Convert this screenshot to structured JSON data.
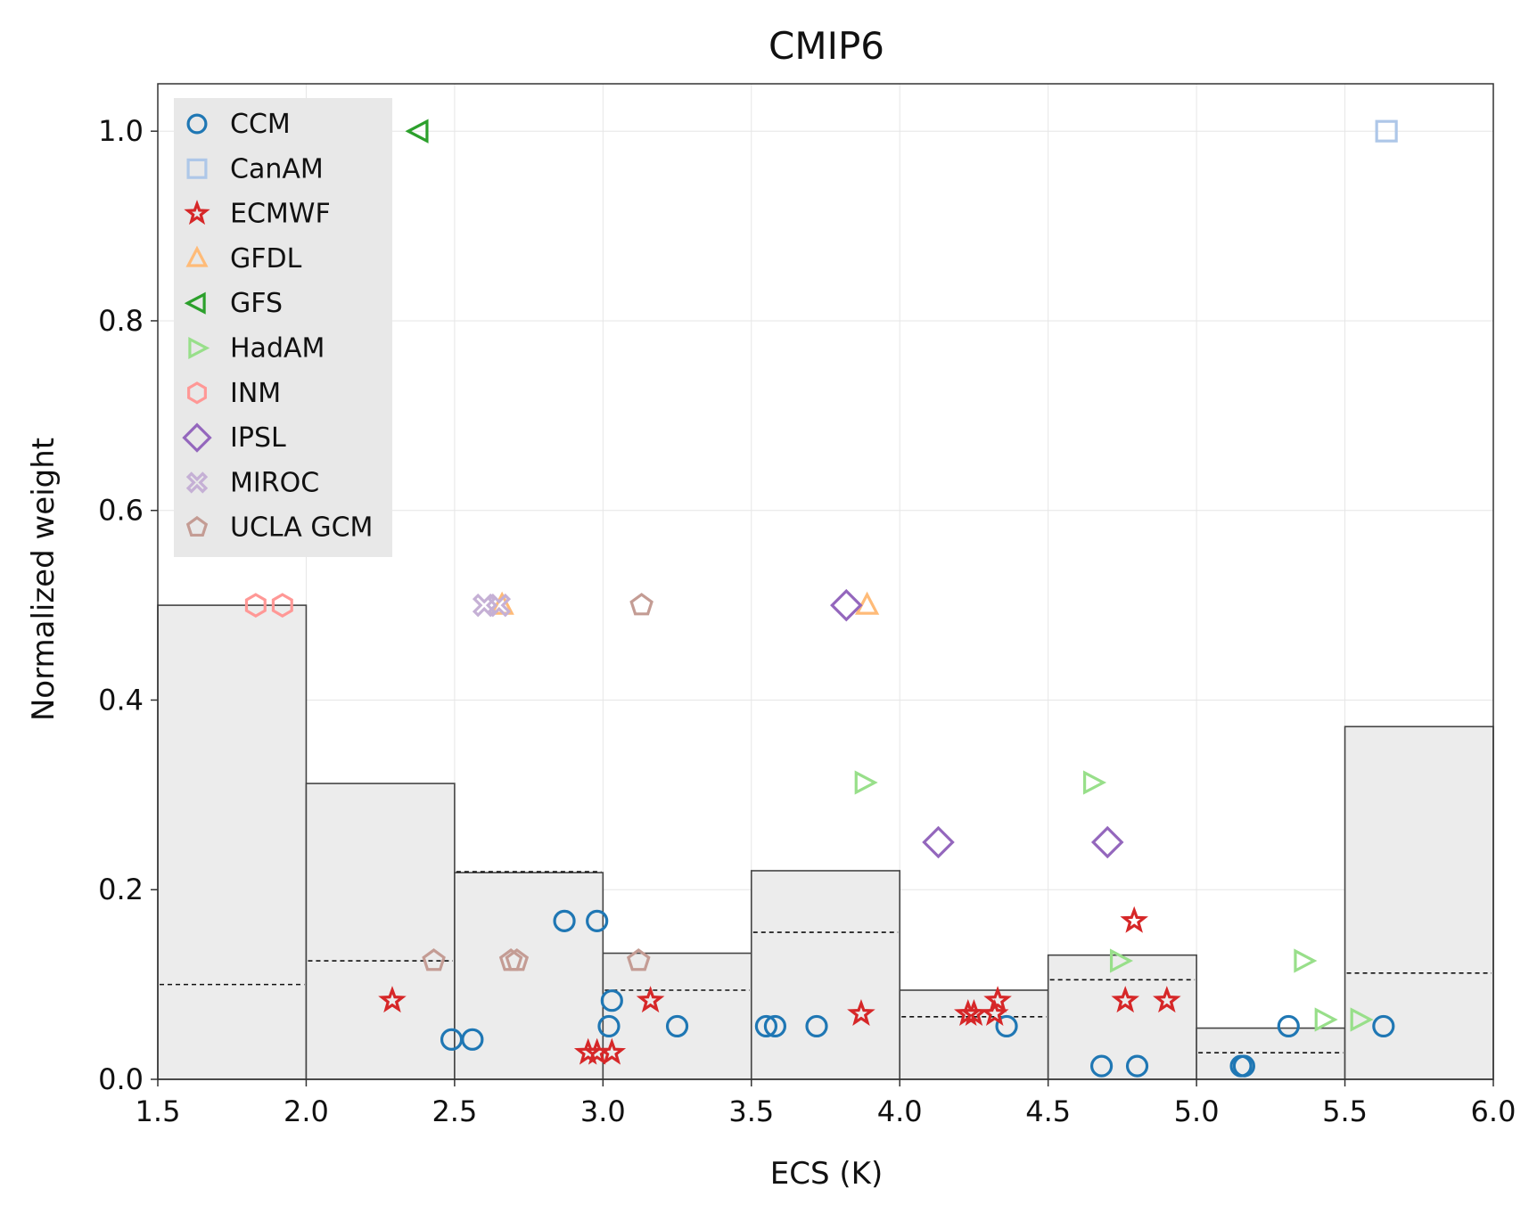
{
  "chart_data": {
    "type": "scatter+histogram",
    "title": "CMIP6",
    "xlabel": "ECS (K)",
    "ylabel": "Normalized weight",
    "xlim": [
      1.5,
      6.0
    ],
    "ylim": [
      0.0,
      1.05
    ],
    "grid": true,
    "legend_position": "top-left",
    "xticks": [
      "1.5",
      "2.0",
      "2.5",
      "3.0",
      "3.5",
      "4.0",
      "4.5",
      "5.0",
      "5.5",
      "6.0"
    ],
    "yticks": [
      "0.0",
      "0.2",
      "0.4",
      "0.6",
      "0.8",
      "1.0"
    ],
    "histogram": {
      "bin_edges": [
        1.5,
        2.0,
        2.5,
        3.0,
        3.5,
        4.0,
        4.5,
        5.0,
        5.5,
        6.0
      ],
      "weighted": [
        0.5,
        0.312,
        0.218,
        0.133,
        0.22,
        0.094,
        0.131,
        0.054,
        0.372
      ],
      "unweighted_dashed": [
        0.1,
        0.125,
        0.219,
        0.094,
        0.155,
        0.066,
        0.105,
        0.028,
        0.112
      ]
    },
    "series": [
      {
        "name": "CCM",
        "marker": "circle",
        "color": "#1f77b4",
        "points": [
          [
            2.49,
            0.042
          ],
          [
            2.56,
            0.042
          ],
          [
            2.87,
            0.167
          ],
          [
            2.98,
            0.167
          ],
          [
            3.02,
            0.056
          ],
          [
            3.03,
            0.083
          ],
          [
            3.25,
            0.056
          ],
          [
            3.55,
            0.056
          ],
          [
            3.58,
            0.056
          ],
          [
            3.72,
            0.056
          ],
          [
            4.36,
            0.056
          ],
          [
            4.68,
            0.014
          ],
          [
            4.8,
            0.014
          ],
          [
            5.15,
            0.014
          ],
          [
            5.16,
            0.014
          ],
          [
            5.31,
            0.056
          ],
          [
            5.63,
            0.056
          ]
        ]
      },
      {
        "name": "CanAM",
        "marker": "square",
        "color": "#aec7e8",
        "points": [
          [
            5.64,
            1.0
          ]
        ]
      },
      {
        "name": "ECMWF",
        "marker": "star",
        "color": "#d62728",
        "points": [
          [
            2.29,
            0.083
          ],
          [
            2.95,
            0.028
          ],
          [
            2.98,
            0.028
          ],
          [
            3.03,
            0.028
          ],
          [
            3.16,
            0.083
          ],
          [
            3.87,
            0.069
          ],
          [
            4.23,
            0.069
          ],
          [
            4.25,
            0.069
          ],
          [
            4.32,
            0.069
          ],
          [
            4.33,
            0.083
          ],
          [
            4.76,
            0.083
          ],
          [
            4.79,
            0.167
          ],
          [
            4.9,
            0.083
          ]
        ]
      },
      {
        "name": "GFDL",
        "marker": "triangle-up",
        "color": "#ffbb78",
        "points": [
          [
            2.66,
            0.5
          ],
          [
            3.89,
            0.5
          ]
        ]
      },
      {
        "name": "GFS",
        "marker": "triangle-left",
        "color": "#2ca02c",
        "points": [
          [
            2.38,
            1.0
          ]
        ]
      },
      {
        "name": "HadAM",
        "marker": "triangle-right",
        "color": "#98df8a",
        "points": [
          [
            3.88,
            0.313
          ],
          [
            4.65,
            0.313
          ],
          [
            4.74,
            0.125
          ],
          [
            5.36,
            0.125
          ],
          [
            5.43,
            0.063
          ],
          [
            5.55,
            0.063
          ]
        ]
      },
      {
        "name": "INM",
        "marker": "hexagon",
        "color": "#ff9896",
        "points": [
          [
            1.83,
            0.5
          ],
          [
            1.92,
            0.5
          ]
        ]
      },
      {
        "name": "IPSL",
        "marker": "diamond",
        "color": "#9467bd",
        "points": [
          [
            3.82,
            0.5
          ],
          [
            4.13,
            0.25
          ],
          [
            4.7,
            0.25
          ]
        ]
      },
      {
        "name": "MIROC",
        "marker": "x",
        "color": "#c5b0d5",
        "points": [
          [
            2.6,
            0.5
          ],
          [
            2.65,
            0.5
          ]
        ]
      },
      {
        "name": "UCLA GCM",
        "marker": "pentagon",
        "color": "#c49c94",
        "points": [
          [
            2.43,
            0.125
          ],
          [
            2.69,
            0.125
          ],
          [
            2.71,
            0.125
          ],
          [
            3.12,
            0.125
          ],
          [
            3.13,
            0.5
          ]
        ]
      }
    ]
  }
}
